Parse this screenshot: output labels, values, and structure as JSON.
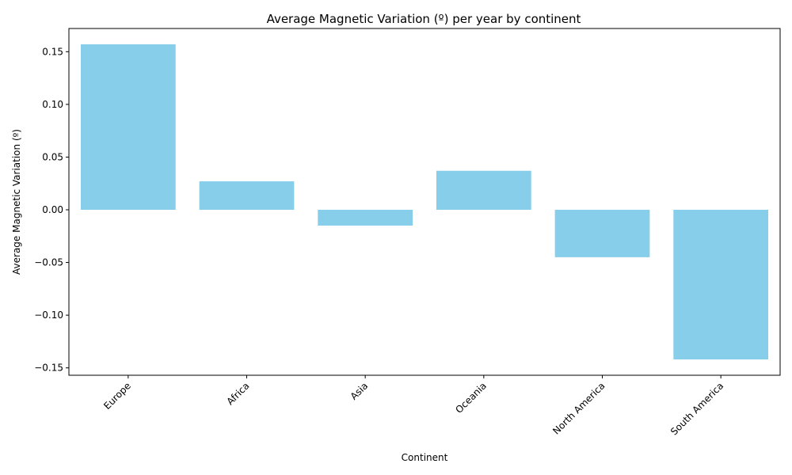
{
  "chart_data": {
    "type": "bar",
    "title": "Average Magnetic Variation (º) per year by continent",
    "xlabel": "Continent",
    "ylabel": "Average Magnetic Variation (º)",
    "categories": [
      "Europe",
      "Africa",
      "Asia",
      "Oceania",
      "North America",
      "South America"
    ],
    "values": [
      0.157,
      0.027,
      -0.015,
      0.037,
      -0.045,
      -0.142
    ],
    "ylim": [
      -0.157,
      0.172
    ],
    "yticks": [
      -0.15,
      -0.1,
      -0.05,
      0.0,
      0.05,
      0.1,
      0.15
    ],
    "ytick_labels": [
      "−0.15",
      "−0.10",
      "−0.05",
      "0.00",
      "0.05",
      "0.10",
      "0.15"
    ],
    "bar_color": "#87ceeb",
    "grid": false,
    "legend": "none"
  }
}
